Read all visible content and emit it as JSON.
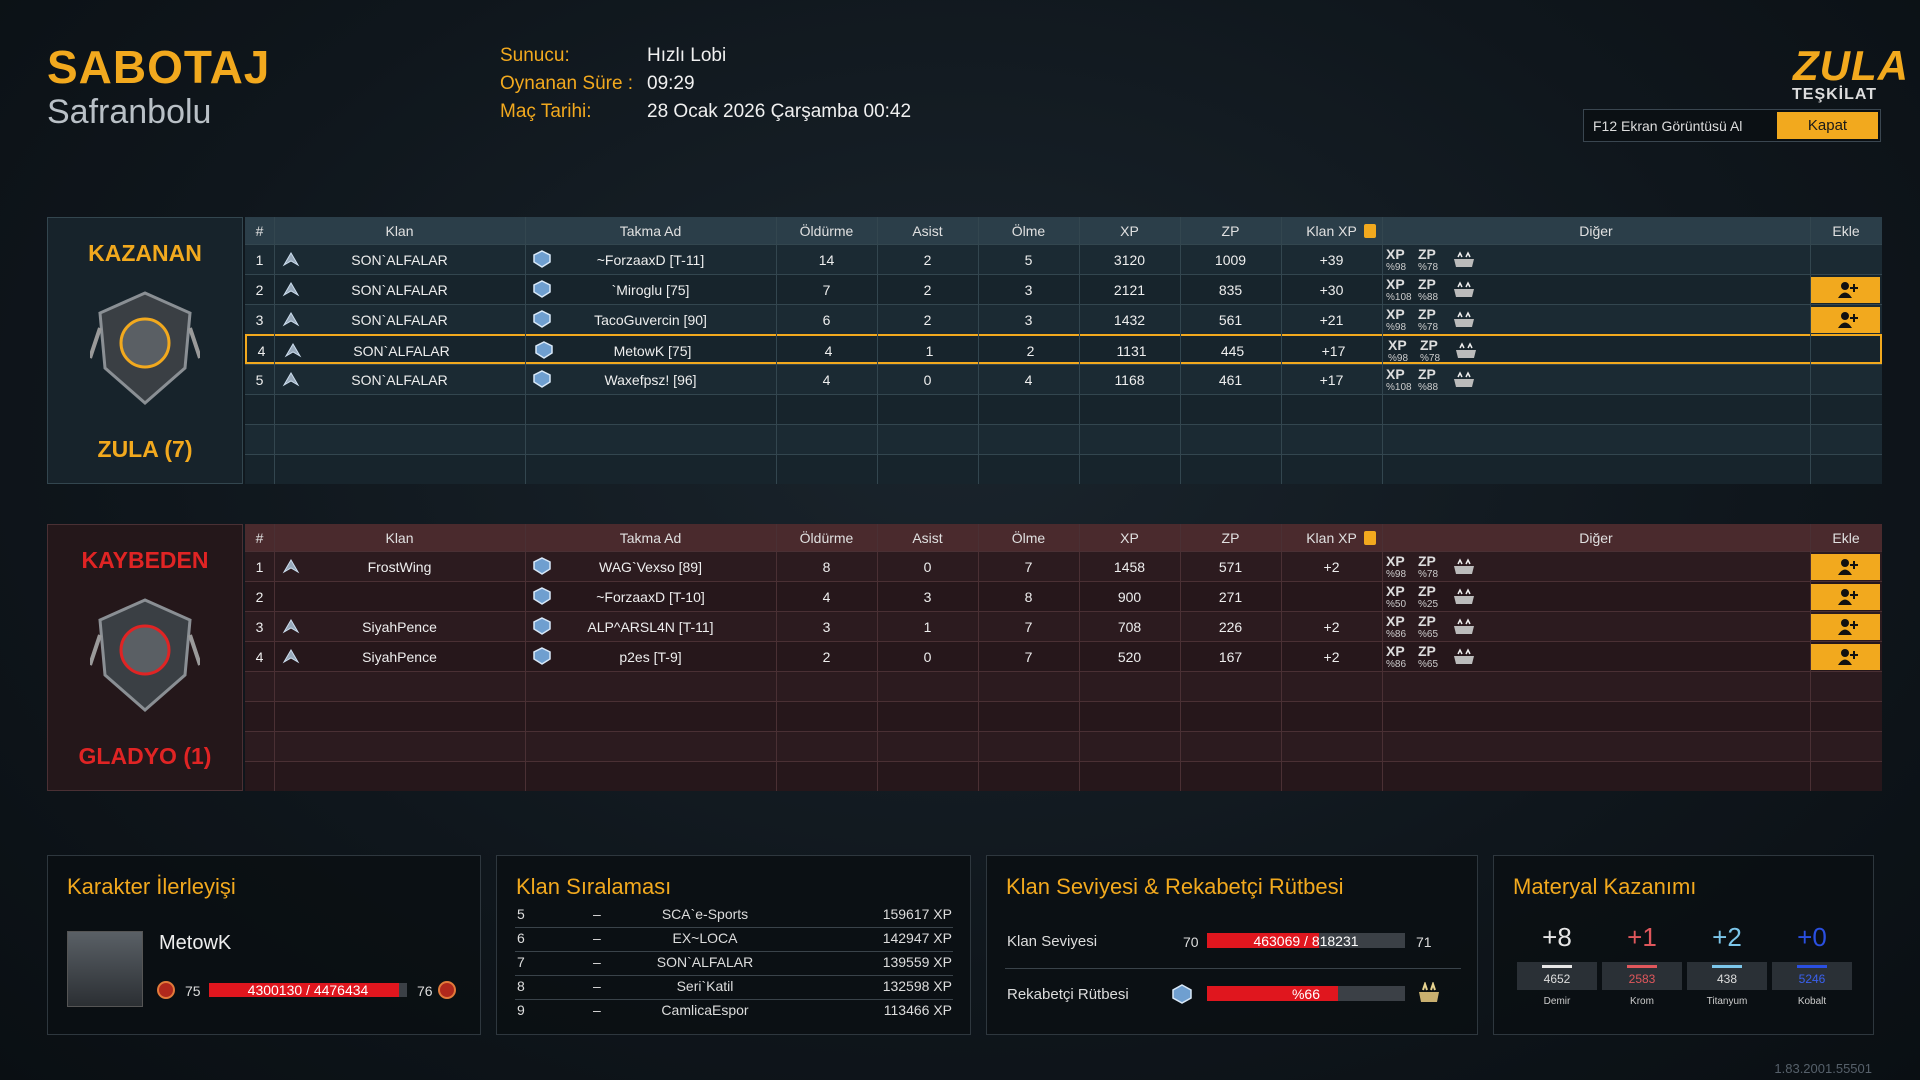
{
  "header": {
    "mode": "SABOTAJ",
    "map": "Safranbolu",
    "info": [
      {
        "label": "Sunucu:",
        "value": "Hızlı Lobi"
      },
      {
        "label": "Oynanan Süre :",
        "value": "09:29"
      },
      {
        "label": "Maç Tarihi:",
        "value": "28 Ocak 2026 Çarşamba 00:42"
      }
    ]
  },
  "logo": {
    "title": "ZULA",
    "subtitle": "TEŞKİLAT"
  },
  "actions": {
    "screenshot": "F12 Ekran Görüntüsü Al",
    "close": "Kapat"
  },
  "scoreboard": {
    "columns": [
      "#",
      "Klan",
      "Takma Ad",
      "Öldürme",
      "Asist",
      "Ölme",
      "XP",
      "ZP",
      "Klan XP",
      "Diğer",
      "Ekle"
    ],
    "bonus_labels": {
      "xp": "XP",
      "zp": "ZP"
    },
    "teams": [
      {
        "status": "KAZANAN",
        "name": "ZULA (7)",
        "color": "#f2a91e",
        "rows": [
          {
            "rank": 1,
            "clan": "SON`ALFALAR",
            "nick": "~ForzaaxD [T-11]",
            "kills": 14,
            "assists": 2,
            "deaths": 5,
            "xp": 3120,
            "zp": 1009,
            "clan_xp": "+39",
            "xp_bonus": "%98",
            "zp_bonus": "%78",
            "can_add": false
          },
          {
            "rank": 2,
            "clan": "SON`ALFALAR",
            "nick": "`Miroglu [75]",
            "kills": 7,
            "assists": 2,
            "deaths": 3,
            "xp": 2121,
            "zp": 835,
            "clan_xp": "+30",
            "xp_bonus": "%108",
            "zp_bonus": "%88",
            "can_add": true
          },
          {
            "rank": 3,
            "clan": "SON`ALFALAR",
            "nick": "TacoGuvercin [90]",
            "kills": 6,
            "assists": 2,
            "deaths": 3,
            "xp": 1432,
            "zp": 561,
            "clan_xp": "+21",
            "xp_bonus": "%98",
            "zp_bonus": "%78",
            "can_add": true
          },
          {
            "rank": 4,
            "clan": "SON`ALFALAR",
            "nick": "MetowK [75]",
            "kills": 4,
            "assists": 1,
            "deaths": 2,
            "xp": 1131,
            "zp": 445,
            "clan_xp": "+17",
            "xp_bonus": "%98",
            "zp_bonus": "%78",
            "can_add": false,
            "highlight": true
          },
          {
            "rank": 5,
            "clan": "SON`ALFALAR",
            "nick": "Waxefpsz! [96]",
            "kills": 4,
            "assists": 0,
            "deaths": 4,
            "xp": 1168,
            "zp": 461,
            "clan_xp": "+17",
            "xp_bonus": "%108",
            "zp_bonus": "%88",
            "can_add": false
          }
        ]
      },
      {
        "status": "KAYBEDEN",
        "name": "GLADYO (1)",
        "color": "#e02424",
        "rows": [
          {
            "rank": 1,
            "clan": "FrostWing",
            "nick": "WAG`Vexso [89]",
            "kills": 8,
            "assists": 0,
            "deaths": 7,
            "xp": 1458,
            "zp": 571,
            "clan_xp": "+2",
            "xp_bonus": "%98",
            "zp_bonus": "%78",
            "can_add": true
          },
          {
            "rank": 2,
            "clan": null,
            "nick": "~ForzaaxD [T-10]",
            "kills": 4,
            "assists": 3,
            "deaths": 8,
            "xp": 900,
            "zp": 271,
            "clan_xp": null,
            "xp_bonus": "%50",
            "zp_bonus": "%25",
            "can_add": true
          },
          {
            "rank": 3,
            "clan": "SiyahPence",
            "nick": "ALP^ARSL4N [T-11]",
            "kills": 3,
            "assists": 1,
            "deaths": 7,
            "xp": 708,
            "zp": 226,
            "clan_xp": "+2",
            "xp_bonus": "%86",
            "zp_bonus": "%65",
            "can_add": true
          },
          {
            "rank": 4,
            "clan": "SiyahPence",
            "nick": "p2es [T-9]",
            "kills": 2,
            "assists": 0,
            "deaths": 7,
            "xp": 520,
            "zp": 167,
            "clan_xp": "+2",
            "xp_bonus": "%86",
            "zp_bonus": "%65",
            "can_add": true
          }
        ]
      }
    ]
  },
  "character": {
    "title": "Karakter İlerleyişi",
    "name": "MetowK",
    "level": 75,
    "next_level": 76,
    "progress": {
      "label": "4300130 / 4476434",
      "value": 4300130,
      "max": 4476434
    }
  },
  "clan_ranking": {
    "title": "Klan Sıralaması",
    "rows": [
      {
        "rank": 5,
        "change": "–",
        "clan": "SCA`e-Sports",
        "xp": "159617 XP"
      },
      {
        "rank": 6,
        "change": "–",
        "clan": "EX~LOCA",
        "xp": "142947 XP"
      },
      {
        "rank": 7,
        "change": "–",
        "clan": "SON`ALFALAR",
        "xp": "139559 XP"
      },
      {
        "rank": 8,
        "change": "–",
        "clan": "Seri`Katil",
        "xp": "132598 XP"
      },
      {
        "rank": 9,
        "change": "–",
        "clan": "CamlicaEspor",
        "xp": "113466 XP"
      }
    ]
  },
  "clan_level": {
    "title": "Klan Seviyesi & Rekabetçi Rütbesi",
    "clan": {
      "label": "Klan Seviyesi",
      "level": 70,
      "next_level": 71,
      "progress": {
        "label": "463069 / 818231",
        "value": 463069,
        "max": 818231
      }
    },
    "competitive": {
      "label": "Rekabetçi Rütbesi",
      "progress": {
        "label": "%66",
        "value": 66
      }
    }
  },
  "materials": {
    "title": "Materyal Kazanımı",
    "items": [
      {
        "gain": "+8",
        "total": 4652,
        "name": "Demir",
        "color": "#e6e6e6"
      },
      {
        "gain": "+1",
        "total": 2583,
        "name": "Krom",
        "color": "#e0575c"
      },
      {
        "gain": "+2",
        "total": 438,
        "name": "Titanyum",
        "color": "#7cc6ea"
      },
      {
        "gain": "+0",
        "total": 5246,
        "name": "Kobalt",
        "color": "#2a4fe0"
      }
    ]
  },
  "version": "1.83.2001.55501"
}
